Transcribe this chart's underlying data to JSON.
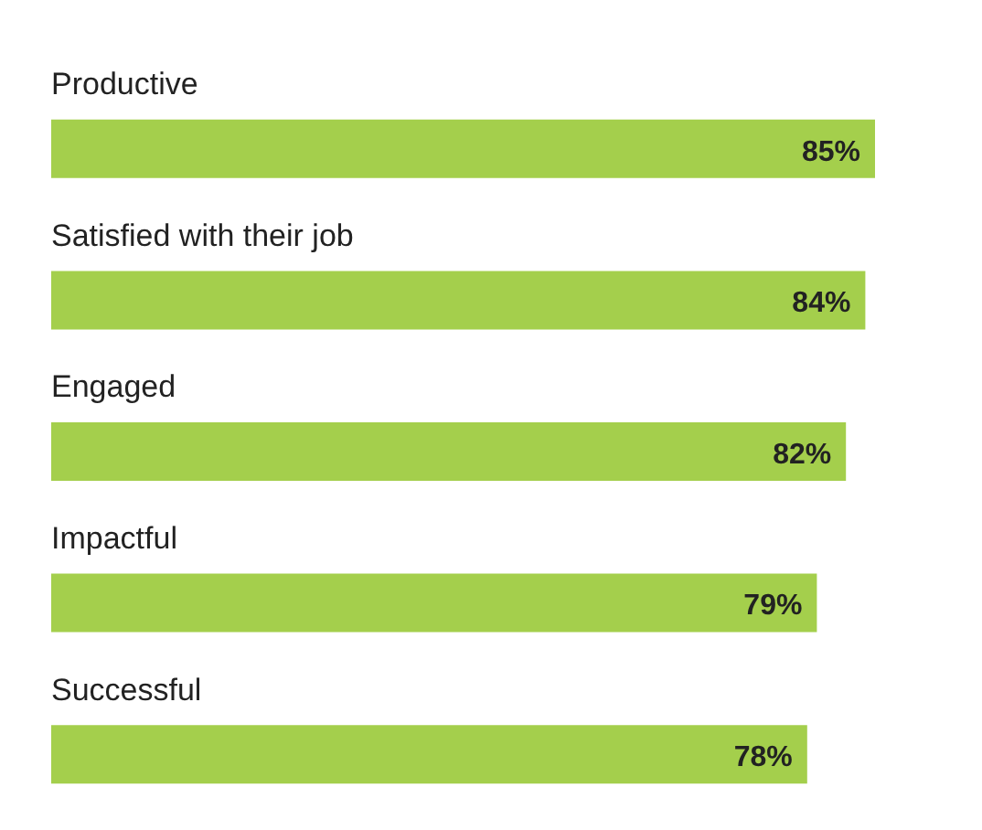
{
  "chart_data": {
    "type": "bar",
    "orientation": "horizontal",
    "categories": [
      "Productive",
      "Satisfied with their job",
      "Engaged",
      "Impactful",
      "Successful"
    ],
    "values": [
      85,
      84,
      82,
      79,
      78
    ],
    "value_labels": [
      "85%",
      "84%",
      "82%",
      "79%",
      "78%"
    ],
    "color": "#a4cf4c",
    "grid": false,
    "legend": false,
    "tick_labels": false
  }
}
